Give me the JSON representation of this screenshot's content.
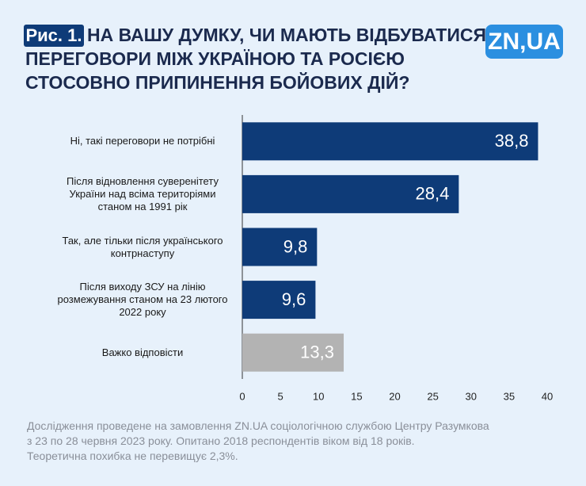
{
  "chart_data": {
    "type": "hbar",
    "figure_label": "Рис. 1.",
    "title": [
      "НА ВАШУ ДУМКУ, ЧИ МАЮТЬ ВІДБУВАТИСЯ",
      "ПЕРЕГОВОРИ МІЖ УКРАЇНОЮ ТА РОСІЄЮ",
      "СТОСОВНО ПРИПИНЕННЯ БОЙОВИХ ДІЙ?"
    ],
    "logo": "ZN,UA",
    "categories": [
      "Ні, такі переговори не потрібні",
      "Після відновлення суверенітету України над всіма територіями станом на 1991 рік",
      "Так, але тільки після українського контрнаступу",
      "Після виходу ЗСУ на лінію розмежування станом на 23 лютого 2022 року",
      "Важко відповісти"
    ],
    "values": [
      38.8,
      28.4,
      9.8,
      9.6,
      13.3
    ],
    "value_labels": [
      "38,8",
      "28,4",
      "9,8",
      "9,6",
      "13,3"
    ],
    "colors": [
      "#0e3b78",
      "#0e3b78",
      "#0e3b78",
      "#0e3b78",
      "#b3b3b3"
    ],
    "xlim": [
      0,
      40
    ],
    "xticks": [
      0,
      5,
      10,
      15,
      20,
      25,
      30,
      35,
      40
    ],
    "footnote": [
      "Дослідження проведене на замовлення ZN.UA соціологічною службою Центру Разумкова",
      "з 23 по 28 червня 2023 року. Опитано 2018 респондентів віком від 18 років.",
      "Теоретична похибка не перевищує 2,3%."
    ]
  }
}
